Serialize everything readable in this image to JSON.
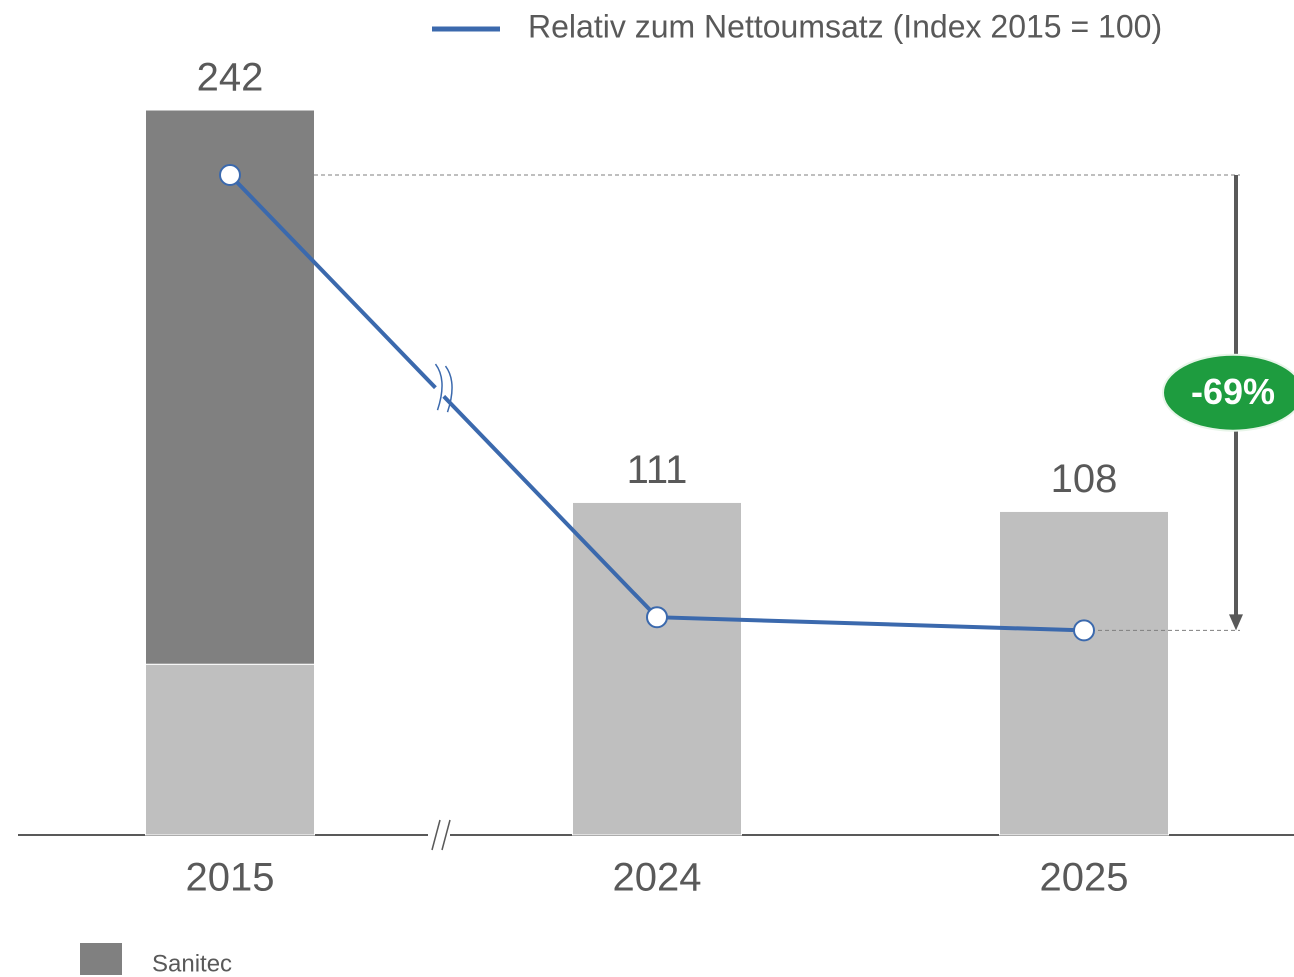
{
  "chart_data": {
    "type": "bar",
    "categories": [
      "2015",
      "2024",
      "2025"
    ],
    "series": [
      {
        "color": "#bfbfbf",
        "values": [
          57,
          111,
          108
        ]
      },
      {
        "name": "Sanitec",
        "color": "#808080",
        "values": [
          185,
          null,
          null
        ]
      },
      {
        "name": "Relativ zum Nettoumsatz (Index 2015 = 100)",
        "color": "#3b69ad",
        "type": "line",
        "axis": "y2",
        "values": [
          100,
          33,
          31
        ]
      }
    ],
    "totals": [
      242,
      111,
      108
    ],
    "ylim": [
      0,
      242
    ],
    "y2lim": [
      0,
      100
    ],
    "annotation": "-69%"
  }
}
